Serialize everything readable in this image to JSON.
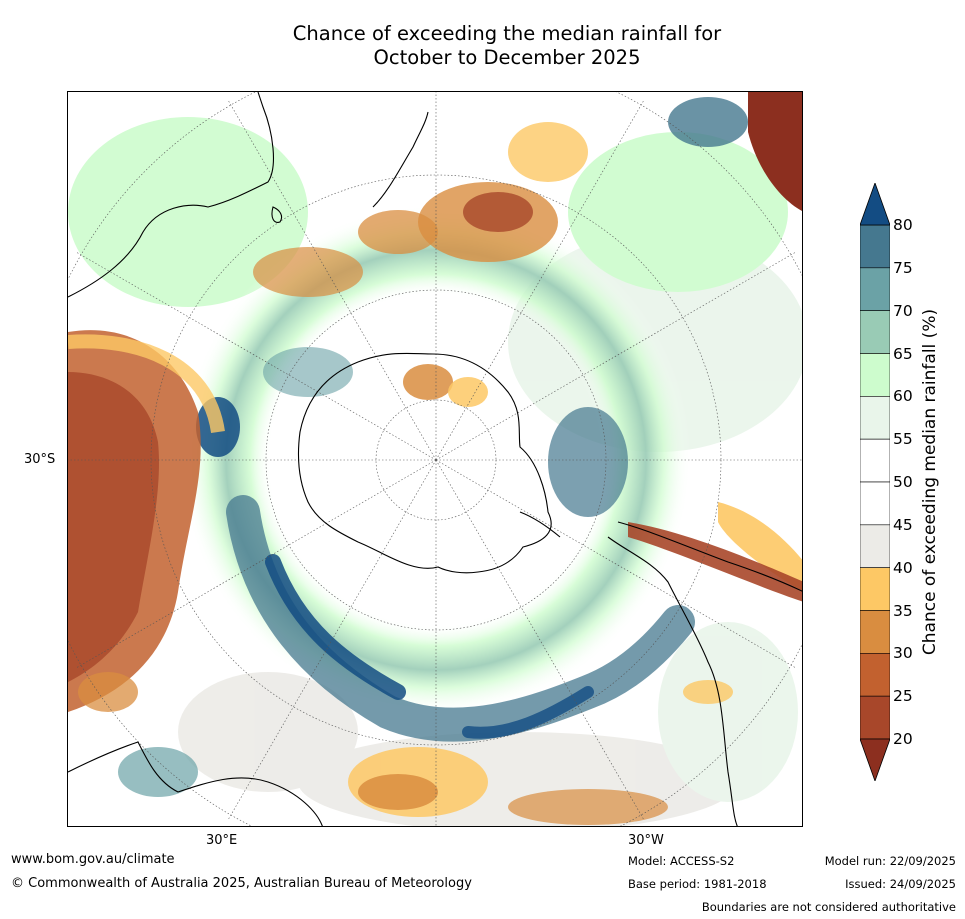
{
  "title": {
    "line1": "Chance of exceeding the median rainfall for",
    "line2": "October to December 2025"
  },
  "map": {
    "projection": "south-polar-stereographic",
    "lat_label": "30°S",
    "lon_labels": [
      "30°E",
      "30°W"
    ]
  },
  "colorbar": {
    "label": "Chance of exceeding median rainfall (%)",
    "ticks": [
      "20",
      "25",
      "30",
      "35",
      "40",
      "45",
      "50",
      "55",
      "60",
      "65",
      "70",
      "75",
      "80"
    ],
    "colors": [
      "#8c2f1f",
      "#a8472a",
      "#c2612f",
      "#d98d40",
      "#fdc865",
      "#ecebe7",
      "#ffffff",
      "#ffffff",
      "#e9f5ea",
      "#cdfccd",
      "#99cbb5",
      "#6ba2a6",
      "#45788f",
      "#134c83"
    ]
  },
  "footer": {
    "website": "www.bom.gov.au/climate",
    "copyright": "© Commonwealth of Australia 2025, Australian Bureau of Meteorology",
    "model": "Model: ACCESS-S2",
    "base_period": "Base period: 1981-2018",
    "model_run": "Model run: 22/09/2025",
    "issued": "Issued: 24/09/2025",
    "boundaries": "Boundaries are not considered authoritative"
  }
}
